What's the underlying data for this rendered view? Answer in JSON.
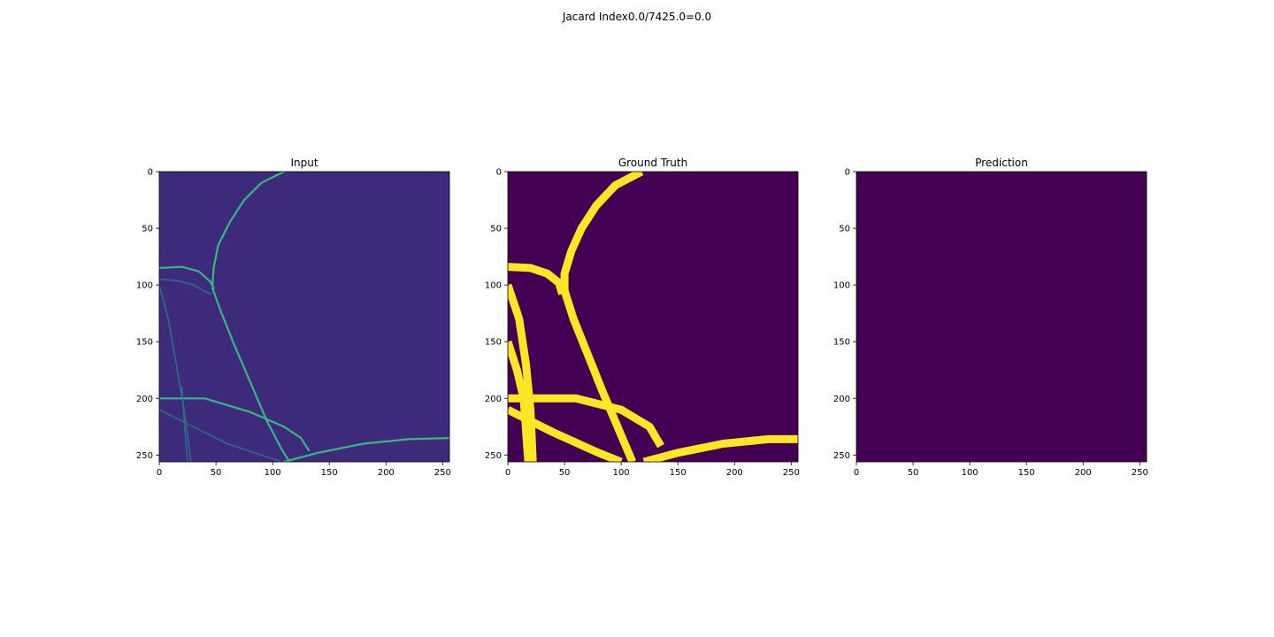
{
  "figure": {
    "suptitle": "Jacard Index0.0/7425.0=0.0",
    "colors": {
      "background": "#440154",
      "foreground": "#fde725",
      "edge_bright": "#35c08a",
      "edge_dim": "#2d6f8e",
      "input_background": "#3e2a7a"
    }
  },
  "chart_data": [
    {
      "type": "heatmap",
      "title": "Input",
      "xlabel": "",
      "ylabel": "",
      "xlim": [
        0,
        256
      ],
      "ylim": [
        256,
        0
      ],
      "xticks": [
        0,
        50,
        100,
        150,
        200,
        250
      ],
      "yticks": [
        0,
        50,
        100,
        150,
        200,
        250
      ],
      "image_size": [
        256,
        256
      ],
      "colormap": "viridis",
      "description_values": "grayscale microscopy image of filament edges",
      "features": [
        {
          "kind": "curve",
          "points": [
            [
              110,
              0
            ],
            [
              90,
              10
            ],
            [
              75,
              25
            ],
            [
              62,
              45
            ],
            [
              52,
              65
            ],
            [
              48,
              85
            ],
            [
              47,
              100
            ]
          ],
          "intensity": "bright"
        },
        {
          "kind": "curve",
          "points": [
            [
              0,
              85
            ],
            [
              20,
              84
            ],
            [
              35,
              88
            ],
            [
              45,
              97
            ],
            [
              48,
              103
            ]
          ],
          "intensity": "bright"
        },
        {
          "kind": "curve",
          "points": [
            [
              47,
              103
            ],
            [
              55,
              125
            ],
            [
              65,
              150
            ],
            [
              80,
              185
            ],
            [
              95,
              220
            ],
            [
              108,
              245
            ],
            [
              115,
              256
            ]
          ],
          "intensity": "bright"
        },
        {
          "kind": "curve",
          "points": [
            [
              0,
              95
            ],
            [
              15,
              96
            ],
            [
              30,
              100
            ],
            [
              45,
              108
            ]
          ],
          "intensity": "dim"
        },
        {
          "kind": "curve",
          "points": [
            [
              0,
              100
            ],
            [
              8,
              130
            ],
            [
              15,
              170
            ],
            [
              22,
              210
            ],
            [
              28,
              256
            ]
          ],
          "intensity": "dim"
        },
        {
          "kind": "curve",
          "points": [
            [
              0,
              200
            ],
            [
              40,
              200
            ],
            [
              80,
              212
            ],
            [
              110,
              225
            ],
            [
              125,
              235
            ],
            [
              132,
              246
            ]
          ],
          "intensity": "bright"
        },
        {
          "kind": "curve",
          "points": [
            [
              0,
              210
            ],
            [
              30,
              225
            ],
            [
              60,
              240
            ],
            [
              90,
              250
            ],
            [
              108,
              256
            ]
          ],
          "intensity": "dim"
        },
        {
          "kind": "curve",
          "points": [
            [
              110,
              256
            ],
            [
              140,
              248
            ],
            [
              180,
              240
            ],
            [
              220,
              236
            ],
            [
              256,
              235
            ]
          ],
          "intensity": "bright"
        },
        {
          "kind": "curve",
          "points": [
            [
              20,
              190
            ],
            [
              22,
              220
            ],
            [
              25,
              256
            ]
          ],
          "intensity": "dim"
        }
      ]
    },
    {
      "type": "heatmap",
      "title": "Ground Truth",
      "xlabel": "",
      "ylabel": "",
      "xlim": [
        0,
        256
      ],
      "ylim": [
        256,
        0
      ],
      "xticks": [
        0,
        50,
        100,
        150,
        200,
        250
      ],
      "yticks": [
        0,
        50,
        100,
        150,
        200,
        250
      ],
      "image_size": [
        256,
        256
      ],
      "colormap": "viridis",
      "mask_value": 1,
      "background_value": 0,
      "features": [
        {
          "kind": "curve",
          "points": [
            [
              118,
              0
            ],
            [
              95,
              12
            ],
            [
              78,
              30
            ],
            [
              65,
              50
            ],
            [
              56,
              70
            ],
            [
              50,
              90
            ],
            [
              50,
              105
            ]
          ]
        },
        {
          "kind": "curve",
          "points": [
            [
              0,
              84
            ],
            [
              20,
              85
            ],
            [
              35,
              90
            ],
            [
              45,
              98
            ],
            [
              48,
              108
            ]
          ]
        },
        {
          "kind": "curve",
          "points": [
            [
              50,
              105
            ],
            [
              58,
              130
            ],
            [
              70,
              160
            ],
            [
              84,
              195
            ],
            [
              98,
              228
            ],
            [
              110,
              256
            ]
          ]
        },
        {
          "kind": "curve",
          "points": [
            [
              0,
              100
            ],
            [
              10,
              130
            ],
            [
              16,
              170
            ],
            [
              20,
              210
            ],
            [
              22,
              256
            ]
          ]
        },
        {
          "kind": "curve",
          "points": [
            [
              0,
              150
            ],
            [
              8,
              175
            ],
            [
              14,
              200
            ],
            [
              18,
              256
            ]
          ]
        },
        {
          "kind": "curve",
          "points": [
            [
              0,
              200
            ],
            [
              60,
              200
            ],
            [
              100,
              210
            ],
            [
              125,
              225
            ],
            [
              135,
              242
            ]
          ]
        },
        {
          "kind": "curve",
          "points": [
            [
              0,
              210
            ],
            [
              40,
              230
            ],
            [
              80,
              248
            ],
            [
              100,
              256
            ]
          ]
        },
        {
          "kind": "curve",
          "points": [
            [
              120,
              256
            ],
            [
              150,
              248
            ],
            [
              190,
              240
            ],
            [
              230,
              236
            ],
            [
              256,
              236
            ]
          ]
        }
      ]
    },
    {
      "type": "heatmap",
      "title": "Prediction",
      "xlabel": "",
      "ylabel": "",
      "xlim": [
        0,
        256
      ],
      "ylim": [
        256,
        0
      ],
      "xticks": [
        0,
        50,
        100,
        150,
        200,
        250
      ],
      "yticks": [
        0,
        50,
        100,
        150,
        200,
        250
      ],
      "image_size": [
        256,
        256
      ],
      "colormap": "viridis",
      "uniform_value": 0,
      "features": []
    }
  ]
}
